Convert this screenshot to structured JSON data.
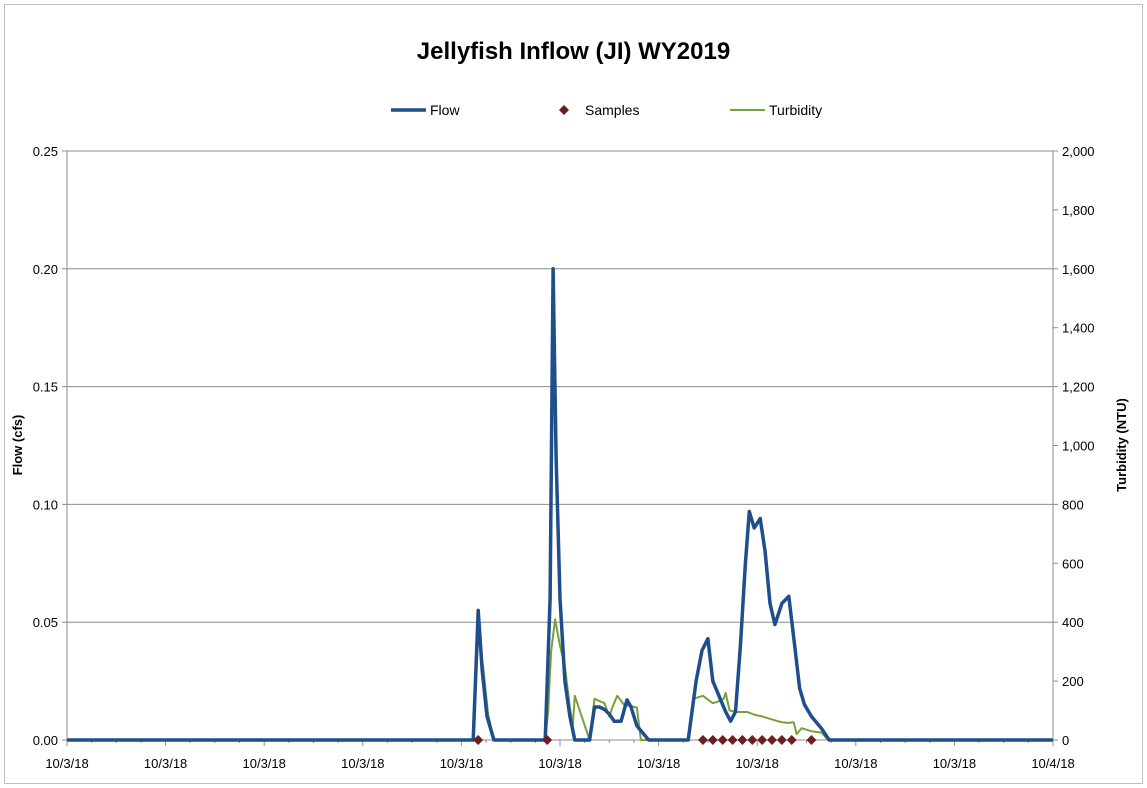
{
  "chart_data": {
    "type": "line",
    "title": "Jellyfish Inflow (JI) WY2019",
    "ylabel": "Flow (cfs)",
    "y2label": "Turbidity (NTU)",
    "xlabel": "",
    "ylim": [
      0,
      0.25
    ],
    "y2lim": [
      0,
      2000
    ],
    "xlim": [
      0,
      10
    ],
    "y_ticks": [
      "0.00",
      "0.05",
      "0.10",
      "0.15",
      "0.20",
      "0.25"
    ],
    "y2_ticks": [
      "0",
      "200",
      "400",
      "600",
      "800",
      "1,000",
      "1,200",
      "1,400",
      "1,600",
      "1,800",
      "2,000"
    ],
    "x_tick_labels": [
      "10/3/18",
      "10/3/18",
      "10/3/18",
      "10/3/18",
      "10/3/18",
      "10/3/18",
      "10/3/18",
      "10/3/18",
      "10/3/18",
      "10/3/18",
      "10/4/18"
    ],
    "grid": true,
    "legend_position": "top",
    "colors": {
      "flow": "#1f4e8c",
      "samples": "#6b1f1f",
      "turbidity": "#77a03a"
    },
    "series": [
      {
        "name": "Flow",
        "axis": "left",
        "x": [
          0,
          4.12,
          4.17,
          4.21,
          4.26,
          4.33,
          4.85,
          4.9,
          4.93,
          4.96,
          5.0,
          5.05,
          5.1,
          5.15,
          5.3,
          5.35,
          5.4,
          5.45,
          5.5,
          5.55,
          5.62,
          5.68,
          5.72,
          5.78,
          5.9,
          6.3,
          6.38,
          6.44,
          6.5,
          6.55,
          6.62,
          6.68,
          6.73,
          6.78,
          6.83,
          6.88,
          6.92,
          6.97,
          7.03,
          7.08,
          7.13,
          7.18,
          7.25,
          7.32,
          7.38,
          7.43,
          7.48,
          7.55,
          7.65,
          7.73,
          10
        ],
        "y": [
          0,
          0,
          0.055,
          0.03,
          0.01,
          0,
          0,
          0.06,
          0.2,
          0.12,
          0.06,
          0.025,
          0.01,
          0,
          0,
          0.014,
          0.014,
          0.013,
          0.011,
          0.008,
          0.008,
          0.017,
          0.014,
          0.006,
          0,
          0,
          0.025,
          0.038,
          0.043,
          0.025,
          0.018,
          0.012,
          0.008,
          0.012,
          0.04,
          0.075,
          0.097,
          0.09,
          0.094,
          0.08,
          0.058,
          0.049,
          0.058,
          0.061,
          0.04,
          0.022,
          0.015,
          0.01,
          0.005,
          0,
          0
        ]
      },
      {
        "name": "Samples",
        "axis": "left",
        "marker": "diamond",
        "x": [
          4.17,
          4.87,
          6.45,
          6.55,
          6.65,
          6.75,
          6.85,
          6.95,
          7.05,
          7.15,
          7.25,
          7.35,
          7.55
        ],
        "y": [
          0,
          0,
          0,
          0,
          0,
          0,
          0,
          0,
          0,
          0,
          0,
          0,
          0
        ]
      },
      {
        "name": "Turbidity",
        "axis": "right",
        "x": [
          0,
          4.12,
          4.17,
          4.22,
          4.27,
          4.33,
          4.85,
          4.88,
          4.91,
          4.95,
          5.0,
          5.05,
          5.08,
          5.1,
          5.13,
          5.15,
          5.3,
          5.35,
          5.45,
          5.5,
          5.53,
          5.58,
          5.65,
          5.72,
          5.78,
          5.82,
          5.9,
          6.3,
          6.35,
          6.4,
          6.45,
          6.55,
          6.6,
          6.66,
          6.68,
          6.72,
          6.8,
          6.9,
          6.98,
          7.05,
          7.15,
          7.25,
          7.32,
          7.37,
          7.4,
          7.45,
          7.55,
          7.65,
          7.72,
          10
        ],
        "y": [
          0,
          0,
          355,
          250,
          90,
          0,
          0,
          100,
          300,
          410,
          320,
          250,
          165,
          110,
          50,
          150,
          0,
          140,
          125,
          80,
          110,
          150,
          120,
          115,
          110,
          0,
          0,
          0,
          140,
          145,
          150,
          125,
          130,
          140,
          160,
          100,
          95,
          95,
          85,
          80,
          70,
          60,
          58,
          60,
          20,
          40,
          30,
          25,
          0,
          0
        ]
      }
    ]
  }
}
